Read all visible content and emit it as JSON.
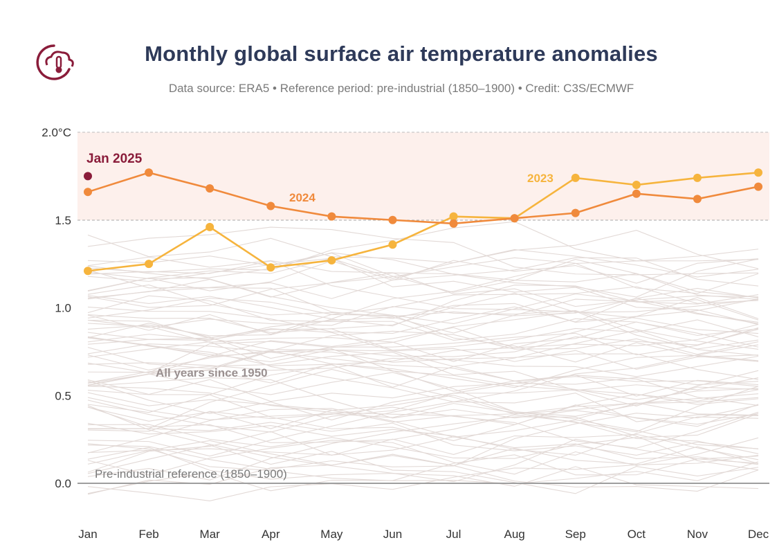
{
  "header": {
    "title": "Monthly global surface air temperature anomalies",
    "subtitle": "Data source: ERA5 • Reference period: pre-industrial (1850–1900) • Credit: C3S/ECMWF",
    "logo_icon": "cloud-thermometer-icon"
  },
  "colors": {
    "title": "#2e3a59",
    "series_2024": "#f08a3c",
    "series_2023": "#f6b43d",
    "jan_2025": "#8a1c3a",
    "background_years": "#e2d9d6",
    "band": "#fdf0ec"
  },
  "chart_data": {
    "type": "line",
    "categories": [
      "Jan",
      "Feb",
      "Mar",
      "Apr",
      "May",
      "Jun",
      "Jul",
      "Aug",
      "Sep",
      "Oct",
      "Nov",
      "Dec"
    ],
    "ylim": [
      0,
      2.0
    ],
    "yticks": [
      "0.0",
      "0.5",
      "1.0",
      "1.5",
      "2.0°C"
    ],
    "ytick_values": [
      0,
      0.5,
      1.0,
      1.5,
      2.0
    ],
    "grid": false,
    "series": [
      {
        "name": "2024",
        "color": "#f08a3c",
        "values": [
          1.66,
          1.77,
          1.68,
          1.58,
          1.52,
          1.5,
          1.48,
          1.51,
          1.54,
          1.65,
          1.62,
          1.69
        ]
      },
      {
        "name": "2023",
        "color": "#f6b43d",
        "values": [
          1.21,
          1.25,
          1.46,
          1.23,
          1.27,
          1.36,
          1.52,
          1.51,
          1.74,
          1.7,
          1.74,
          1.77
        ]
      }
    ],
    "point": {
      "name": "Jan 2025",
      "month": "Jan",
      "value": 1.75,
      "color": "#8a1c3a"
    },
    "background_label": "All years since 1950",
    "reference_label": "Pre-industrial reference (1850–1900)"
  }
}
